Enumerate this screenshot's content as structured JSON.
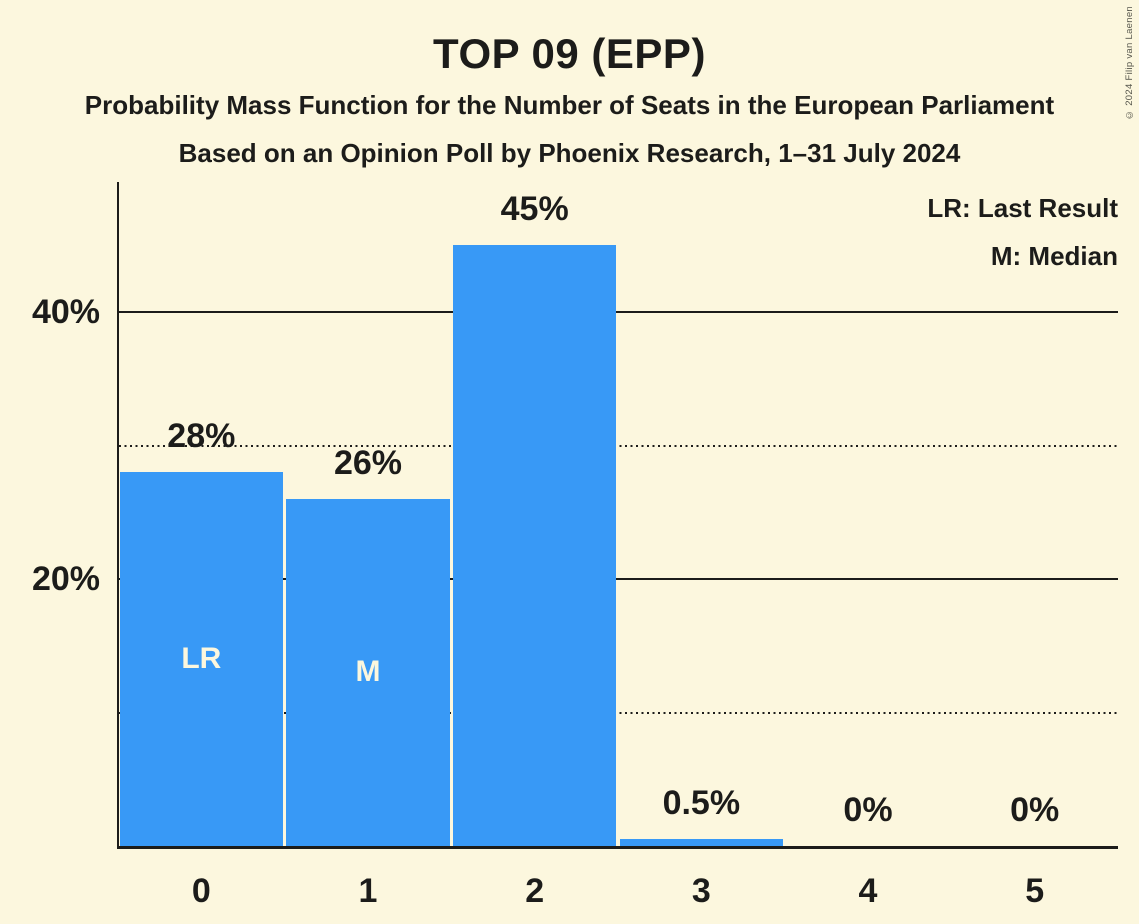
{
  "copyright": "© 2024 Filip van Laenen",
  "chart_data": {
    "type": "bar",
    "title": "TOP 09 (EPP)",
    "subtitle1": "Probability Mass Function for the Number of Seats in the European Parliament",
    "subtitle2": "Based on an Opinion Poll by Phoenix Research, 1–31 July 2024",
    "xlabel": "",
    "ylabel": "",
    "categories": [
      "0",
      "1",
      "2",
      "3",
      "4",
      "5"
    ],
    "values": [
      28,
      26,
      45,
      0.5,
      0,
      0
    ],
    "value_labels": [
      "28%",
      "26%",
      "45%",
      "0.5%",
      "0%",
      "0%"
    ],
    "bar_annotations": [
      "LR",
      "M",
      "",
      "",
      "",
      ""
    ],
    "annotation_legend": [
      {
        "key": "LR",
        "meaning": "Last Result",
        "label": "LR: Last Result"
      },
      {
        "key": "M",
        "meaning": "Median",
        "label": "M: Median"
      }
    ],
    "legend_position": "top-right",
    "y_ticks": [
      {
        "value": 20,
        "label": "20%"
      },
      {
        "value": 40,
        "label": "40%"
      }
    ],
    "solid_gridlines": [
      20,
      40
    ],
    "dotted_gridlines": [
      10,
      30
    ],
    "ylim": [
      0,
      49.7
    ],
    "grid": "horizontal-only",
    "colors": {
      "bar": "#3899F6",
      "background": "#FCF7DE",
      "text": "#1C1C1A",
      "bar_annotation_text": "#FCF7DE",
      "copyright_text": "#56564C"
    }
  }
}
